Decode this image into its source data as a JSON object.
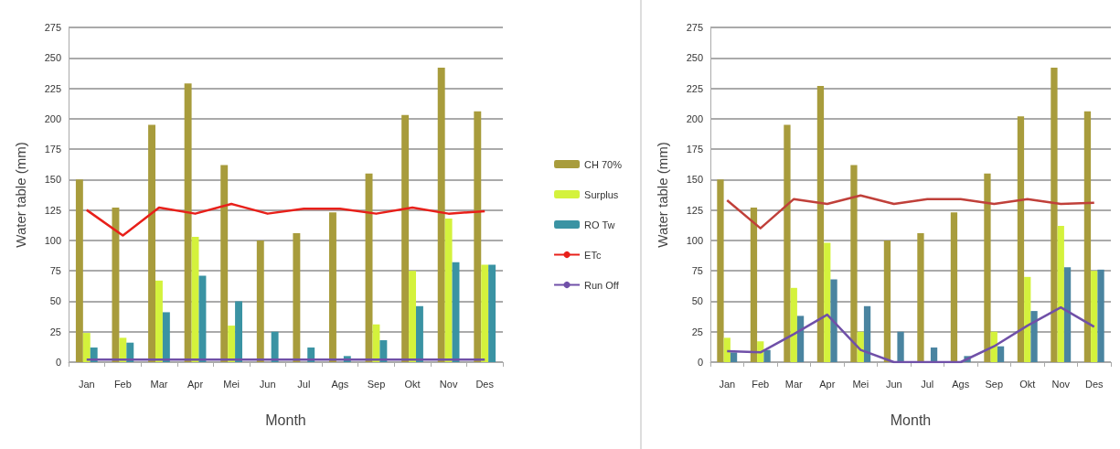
{
  "chart_data": [
    {
      "type": "bar",
      "xlabel": "Month",
      "ylabel": "Water table (mm)",
      "categories": [
        "Jan",
        "Feb",
        "Mar",
        "Apr",
        "Mei",
        "Jun",
        "Jul",
        "Ags",
        "Sep",
        "Okt",
        "Nov",
        "Des"
      ],
      "series": [
        {
          "name": "CH 70%",
          "color": "#a89c3c",
          "values": [
            150,
            127,
            195,
            229,
            162,
            100,
            106,
            123,
            155,
            203,
            242,
            206
          ]
        },
        {
          "name": "Surplus",
          "color": "#d4f23c",
          "values": [
            24,
            20,
            67,
            103,
            30,
            0,
            0,
            0,
            31,
            75,
            118,
            80
          ]
        },
        {
          "name": "RO Tw",
          "color": "#3a93a3",
          "values": [
            12,
            16,
            41,
            71,
            50,
            25,
            12,
            5,
            18,
            46,
            82,
            80
          ]
        },
        {
          "name": "ETc",
          "type": "line",
          "color": "#e8201a",
          "values": [
            125,
            104,
            127,
            122,
            130,
            122,
            126,
            126,
            122,
            127,
            122,
            124
          ]
        },
        {
          "name": "Run Off",
          "type": "line",
          "color": "#7050a8",
          "values": [
            2,
            2,
            2,
            2,
            2,
            2,
            2,
            2,
            2,
            2,
            2,
            2
          ]
        }
      ],
      "ylim": [
        0,
        275
      ],
      "yticks": [
        0,
        25,
        50,
        75,
        100,
        125,
        150,
        175,
        200,
        225,
        250,
        275
      ],
      "grid": "y",
      "legend": "right",
      "marker": "none"
    },
    {
      "type": "bar",
      "xlabel": "Month",
      "ylabel": "Water table (mm)",
      "categories": [
        "Jan",
        "Feb",
        "Mar",
        "Apr",
        "Mei",
        "Jun",
        "Jul",
        "Ags",
        "Sep",
        "Okt",
        "Nov",
        "Des"
      ],
      "series": [
        {
          "color": "#a89c3c",
          "values": [
            150,
            127,
            195,
            227,
            162,
            100,
            106,
            123,
            155,
            202,
            242,
            206
          ]
        },
        {
          "color": "#d4f23c",
          "values": [
            20,
            17,
            61,
            98,
            25,
            0,
            0,
            0,
            25,
            70,
            112,
            75
          ]
        },
        {
          "color": "#4a84a0",
          "values": [
            8,
            10,
            38,
            68,
            46,
            25,
            12,
            5,
            13,
            42,
            78,
            76
          ]
        },
        {
          "type": "line",
          "color": "#c0403a",
          "values": [
            133,
            110,
            134,
            130,
            137,
            130,
            134,
            134,
            130,
            134,
            130,
            131
          ]
        },
        {
          "type": "line",
          "color": "#7050a8",
          "values": [
            9,
            8,
            23,
            39,
            10,
            0,
            0,
            0,
            13,
            30,
            45,
            29
          ]
        }
      ],
      "ylim": [
        0,
        275
      ],
      "yticks": [
        0,
        25,
        50,
        75,
        100,
        125,
        150,
        175,
        200,
        225,
        250,
        275
      ],
      "grid": "y",
      "legend": false,
      "marker": "none"
    }
  ]
}
